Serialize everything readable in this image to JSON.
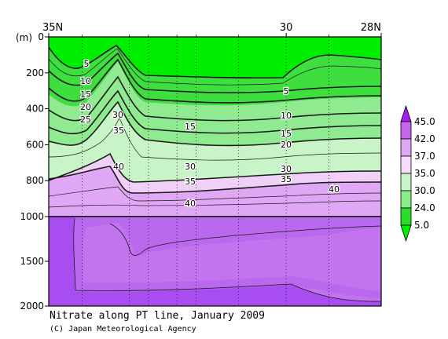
{
  "chart_data": {
    "type": "contour",
    "title": "Nitrate along PT line, January 2009",
    "credit": "(C) Japan Meteorological Agency",
    "y_unit_label": "(m)",
    "x_axis": {
      "range": [
        35,
        28
      ],
      "ticks": [
        {
          "value": 35,
          "label": "35N"
        },
        {
          "value": 30,
          "label": "30"
        },
        {
          "value": 28,
          "label": "28N"
        }
      ],
      "minor_ticks": [
        34.3,
        33.3,
        32.9,
        32.3,
        31.9,
        31.0,
        30.0,
        29.1
      ]
    },
    "y_axis": {
      "range": [
        0,
        2000
      ],
      "break_at": 1000,
      "upper_ticks": [
        0,
        200,
        400,
        600,
        800,
        1000
      ],
      "lower_ticks": [
        1500,
        2000
      ]
    },
    "colorbar": {
      "levels": [
        "45.0",
        "42.0",
        "37.0",
        "35.0",
        "30.0",
        "24.0",
        "5.0"
      ],
      "colors": [
        "#a020f0",
        "#c666ec",
        "#e0a8f4",
        "#f6dcf8",
        "#c8f4c8",
        "#88ec88",
        "#2cdc2c",
        "#00ee00"
      ]
    },
    "contour_labels": [
      "5",
      "10",
      "15",
      "20",
      "25",
      "30",
      "35",
      "40",
      "5",
      "10",
      "15",
      "20",
      "30",
      "35",
      "40",
      "15",
      "30",
      "35",
      "40"
    ]
  }
}
